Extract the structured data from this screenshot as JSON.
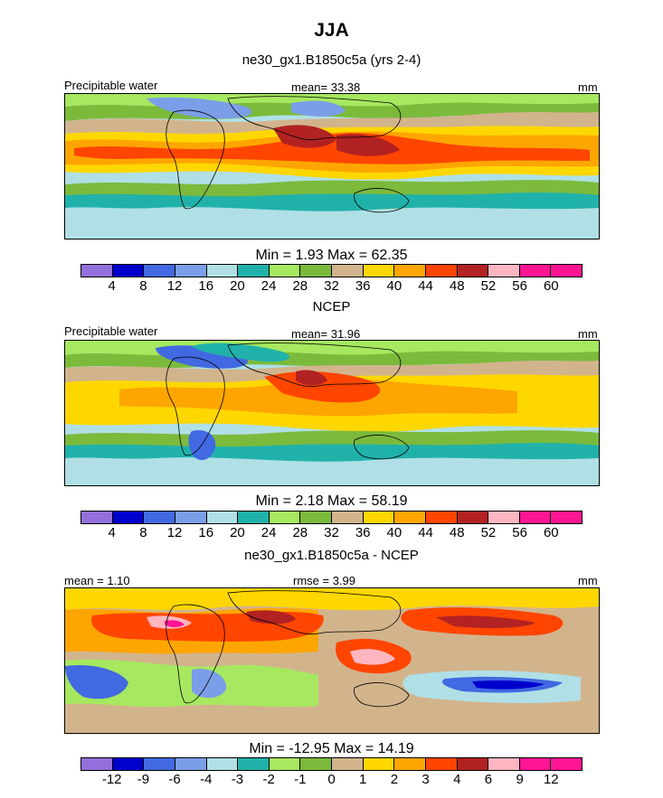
{
  "figure_title": "JJA",
  "panels": [
    {
      "title": "ne30_gx1.B1850c5a (yrs 2-4)",
      "left_label": "Precipitable water",
      "center_label": "mean=  33.38",
      "right_label": "mm",
      "minmax": "Min =   1.93 Max =  62.35",
      "colorbar_ticks": [
        "4",
        "8",
        "12",
        "16",
        "20",
        "24",
        "28",
        "32",
        "36",
        "40",
        "44",
        "48",
        "52",
        "56",
        "60"
      ]
    },
    {
      "title": "NCEP",
      "left_label": "Precipitable water",
      "center_label": "mean=  31.96",
      "right_label": "mm",
      "minmax": "Min =   2.18 Max =  58.19",
      "colorbar_ticks": [
        "4",
        "8",
        "12",
        "16",
        "20",
        "24",
        "28",
        "32",
        "36",
        "40",
        "44",
        "48",
        "52",
        "56",
        "60"
      ]
    },
    {
      "title": "ne30_gx1.B1850c5a - NCEP",
      "left_label": "mean =   1.10",
      "center_label": "rmse =   3.99",
      "right_label": "mm",
      "minmax": "Min = -12.95 Max =  14.19",
      "colorbar_ticks": [
        "-12",
        "-9",
        "-6",
        "-4",
        "-3",
        "-2",
        "-1",
        "0",
        "1",
        "2",
        "3",
        "4",
        "6",
        "9",
        "12"
      ]
    }
  ],
  "colors": {
    "palette": [
      "#9370db",
      "#0000cd",
      "#4169e1",
      "#7b9ee8",
      "#b0e0e6",
      "#20b2aa",
      "#a6e860",
      "#7cba3c",
      "#d2b48c",
      "#ffd700",
      "#ffa500",
      "#ff4500",
      "#b22222",
      "#ffb6c1",
      "#ff1493"
    ]
  },
  "chart_data": [
    {
      "type": "heatmap",
      "title": "ne30_gx1.B1850c5a (yrs 2-4)",
      "variable": "Precipitable water",
      "units": "mm",
      "mean": 33.38,
      "min": 1.93,
      "max": 62.35,
      "levels": [
        4,
        8,
        12,
        16,
        20,
        24,
        28,
        32,
        36,
        40,
        44,
        48,
        52,
        56,
        60
      ]
    },
    {
      "type": "heatmap",
      "title": "NCEP",
      "variable": "Precipitable water",
      "units": "mm",
      "mean": 31.96,
      "min": 2.18,
      "max": 58.19,
      "levels": [
        4,
        8,
        12,
        16,
        20,
        24,
        28,
        32,
        36,
        40,
        44,
        48,
        52,
        56,
        60
      ]
    },
    {
      "type": "heatmap",
      "title": "ne30_gx1.B1850c5a - NCEP",
      "units": "mm",
      "mean": 1.1,
      "rmse": 3.99,
      "min": -12.95,
      "max": 14.19,
      "levels": [
        -12,
        -9,
        -6,
        -4,
        -3,
        -2,
        -1,
        0,
        1,
        2,
        3,
        4,
        6,
        9,
        12
      ]
    }
  ]
}
